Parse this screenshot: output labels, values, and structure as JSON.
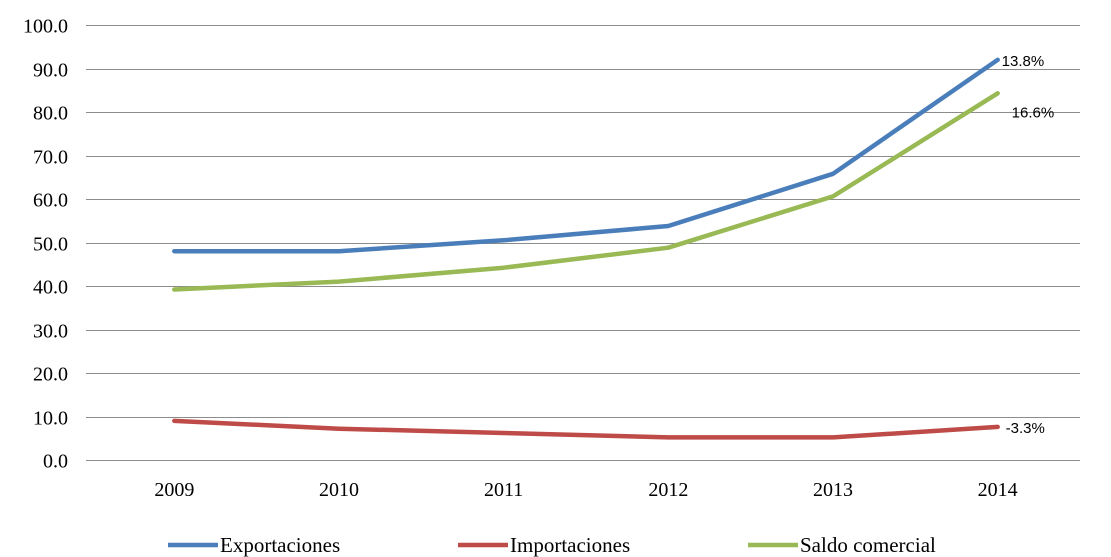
{
  "chart_data": {
    "type": "line",
    "title": "",
    "xlabel": "",
    "ylabel": "",
    "categories": [
      "2009",
      "2010",
      "2011",
      "2012",
      "2013",
      "2014"
    ],
    "ylim": [
      0,
      100
    ],
    "y_ticks": [
      "0.0",
      "10.0",
      "20.0",
      "30.0",
      "40.0",
      "50.0",
      "60.0",
      "70.0",
      "80.0",
      "90.0",
      "100.0"
    ],
    "grid": true,
    "legend_position": "bottom",
    "series": [
      {
        "name": "Exportaciones",
        "color": "#4a7ebb",
        "values": [
          48.0,
          48.0,
          50.5,
          53.8,
          65.8,
          92.0
        ],
        "end_label": "13.8%"
      },
      {
        "name": "Importaciones",
        "color": "#be4b48",
        "values": [
          9.0,
          7.2,
          6.2,
          5.2,
          5.2,
          7.6
        ],
        "end_label": "-3.3%"
      },
      {
        "name": "Saldo comercial",
        "color": "#98b954",
        "values": [
          39.2,
          41.0,
          44.2,
          48.8,
          60.6,
          84.3
        ],
        "end_label": "16.6%"
      }
    ]
  }
}
